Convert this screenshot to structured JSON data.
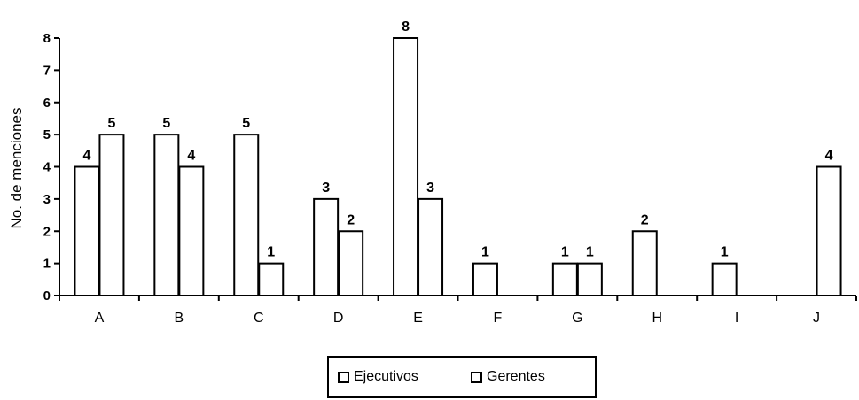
{
  "chart_data": {
    "type": "bar",
    "categories": [
      "A",
      "B",
      "C",
      "D",
      "E",
      "F",
      "G",
      "H",
      "I",
      "J"
    ],
    "series": [
      {
        "name": "Ejecutivos",
        "values": [
          4,
          5,
          5,
          3,
          8,
          1,
          1,
          2,
          1,
          null
        ]
      },
      {
        "name": "Gerentes",
        "values": [
          5,
          4,
          1,
          2,
          3,
          null,
          1,
          null,
          null,
          4
        ]
      }
    ],
    "title": "",
    "xlabel": "",
    "ylabel": "No. de menciones",
    "ylim": [
      0,
      8
    ],
    "yticks": [
      0,
      1,
      2,
      3,
      4,
      5,
      6,
      7,
      8
    ],
    "grid": false,
    "legend_position": "bottom",
    "data_labels": true,
    "colors": {
      "bar_fill": "#ffffff",
      "bar_stroke": "#000000",
      "axis": "#000000"
    }
  }
}
